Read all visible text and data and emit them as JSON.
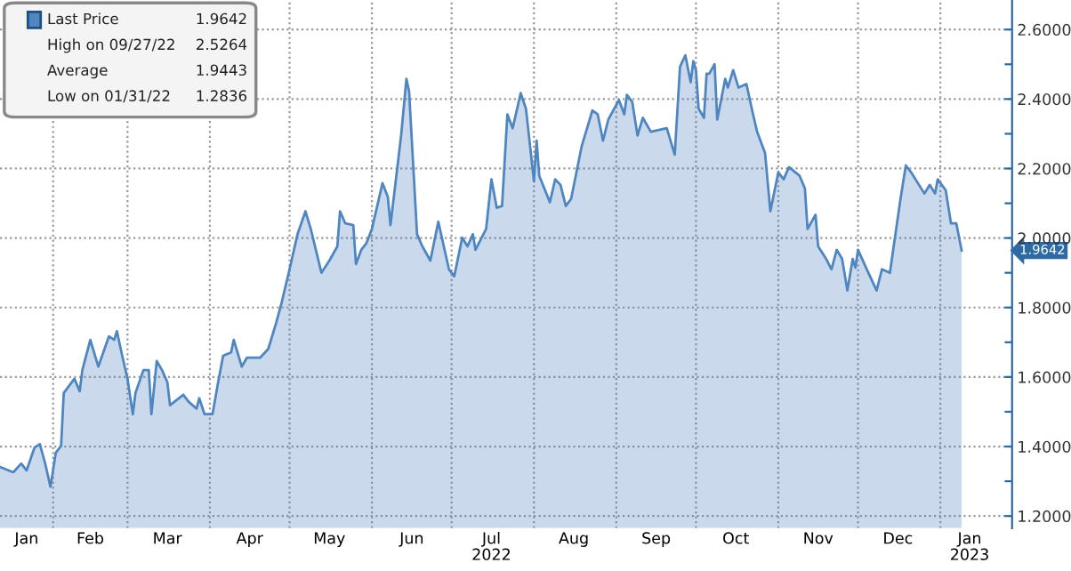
{
  "chart_data": {
    "type": "area",
    "x": [
      "2022-01-12",
      "2022-01-17",
      "2022-01-20",
      "2022-01-22",
      "2022-01-25",
      "2022-01-27",
      "2022-01-29",
      "2022-01-31",
      "2022-02-02",
      "2022-02-04",
      "2022-02-05",
      "2022-02-09",
      "2022-02-11",
      "2022-02-12",
      "2022-02-15",
      "2022-02-18",
      "2022-02-22",
      "2022-02-24",
      "2022-02-25",
      "2022-02-27",
      "2022-03-01",
      "2022-03-03",
      "2022-03-04",
      "2022-03-07",
      "2022-03-09",
      "2022-03-10",
      "2022-03-12",
      "2022-03-14",
      "2022-03-16",
      "2022-03-17",
      "2022-03-22",
      "2022-03-24",
      "2022-03-27",
      "2022-03-28",
      "2022-03-30",
      "2022-04-02",
      "2022-04-04",
      "2022-04-06",
      "2022-04-09",
      "2022-04-10",
      "2022-04-13",
      "2022-04-15",
      "2022-04-20",
      "2022-04-23",
      "2022-04-26",
      "2022-04-28",
      "2022-05-01",
      "2022-05-04",
      "2022-05-07",
      "2022-05-09",
      "2022-05-13",
      "2022-05-16",
      "2022-05-19",
      "2022-05-20",
      "2022-05-22",
      "2022-05-25",
      "2022-05-26",
      "2022-05-28",
      "2022-05-30",
      "2022-06-01",
      "2022-06-05",
      "2022-06-07",
      "2022-06-08",
      "2022-06-12",
      "2022-06-14",
      "2022-06-15",
      "2022-06-18",
      "2022-06-20",
      "2022-06-23",
      "2022-06-26",
      "2022-06-30",
      "2022-07-02",
      "2022-07-05",
      "2022-07-07",
      "2022-07-09",
      "2022-07-10",
      "2022-07-14",
      "2022-07-16",
      "2022-07-18",
      "2022-07-20",
      "2022-07-22",
      "2022-07-24",
      "2022-07-27",
      "2022-07-29",
      "2022-08-01",
      "2022-08-02",
      "2022-08-03",
      "2022-08-07",
      "2022-08-09",
      "2022-08-11",
      "2022-08-13",
      "2022-08-15",
      "2022-08-19",
      "2022-08-23",
      "2022-08-25",
      "2022-08-27",
      "2022-08-29",
      "2022-09-02",
      "2022-09-04",
      "2022-09-05",
      "2022-09-07",
      "2022-09-09",
      "2022-09-11",
      "2022-09-14",
      "2022-09-20",
      "2022-09-23",
      "2022-09-25",
      "2022-09-27",
      "2022-09-29",
      "2022-09-30",
      "2022-10-01",
      "2022-10-02",
      "2022-10-04",
      "2022-10-05",
      "2022-10-06",
      "2022-10-08",
      "2022-10-09",
      "2022-10-12",
      "2022-10-13",
      "2022-10-15",
      "2022-10-17",
      "2022-10-20",
      "2022-10-22",
      "2022-10-24",
      "2022-10-27",
      "2022-10-29",
      "2022-11-01",
      "2022-11-03",
      "2022-11-05",
      "2022-11-09",
      "2022-11-11",
      "2022-11-12",
      "2022-11-15",
      "2022-11-16",
      "2022-11-19",
      "2022-11-21",
      "2022-11-23",
      "2022-11-25",
      "2022-11-27",
      "2022-11-29",
      "2022-11-30",
      "2022-12-01",
      "2022-12-04",
      "2022-12-08",
      "2022-12-10",
      "2022-12-13",
      "2022-12-17",
      "2022-12-19",
      "2022-12-21",
      "2022-12-26",
      "2022-12-28",
      "2022-12-30",
      "2022-12-31",
      "2023-01-03",
      "2023-01-05",
      "2023-01-07",
      "2023-01-09"
    ],
    "series": [
      {
        "name": "Last Price",
        "color": "#4f86c0",
        "values": [
          1.341,
          1.326,
          1.351,
          1.331,
          1.397,
          1.407,
          1.351,
          1.284,
          1.382,
          1.402,
          1.554,
          1.595,
          1.559,
          1.62,
          1.707,
          1.63,
          1.717,
          1.707,
          1.732,
          1.661,
          1.595,
          1.493,
          1.554,
          1.62,
          1.62,
          1.493,
          1.646,
          1.62,
          1.585,
          1.519,
          1.549,
          1.529,
          1.509,
          1.539,
          1.493,
          1.493,
          1.58,
          1.661,
          1.671,
          1.707,
          1.63,
          1.656,
          1.656,
          1.681,
          1.757,
          1.813,
          1.91,
          2.011,
          2.077,
          2.026,
          1.9,
          1.935,
          1.976,
          2.077,
          2.042,
          2.037,
          1.925,
          1.966,
          1.986,
          2.026,
          2.158,
          2.118,
          2.037,
          2.295,
          2.458,
          2.422,
          2.011,
          1.976,
          1.935,
          2.047,
          1.91,
          1.89,
          2.001,
          1.976,
          2.011,
          1.966,
          2.026,
          2.169,
          2.087,
          2.092,
          2.356,
          2.316,
          2.417,
          2.372,
          2.163,
          2.28,
          2.179,
          2.103,
          2.169,
          2.153,
          2.092,
          2.113,
          2.265,
          2.367,
          2.356,
          2.28,
          2.341,
          2.397,
          2.356,
          2.412,
          2.392,
          2.295,
          2.346,
          2.306,
          2.316,
          2.24,
          2.493,
          2.526,
          2.448,
          2.509,
          2.483,
          2.372,
          2.346,
          2.473,
          2.473,
          2.5,
          2.341,
          2.458,
          2.433,
          2.483,
          2.433,
          2.443,
          2.372,
          2.306,
          2.245,
          2.077,
          2.189,
          2.169,
          2.204,
          2.179,
          2.143,
          2.026,
          2.067,
          1.976,
          1.94,
          1.91,
          1.966,
          1.94,
          1.849,
          1.94,
          1.915,
          1.966,
          1.915,
          1.849,
          1.91,
          1.9,
          2.113,
          2.209,
          2.189,
          2.128,
          2.153,
          2.128,
          2.169,
          2.138,
          2.042,
          2.042,
          1.9642
        ]
      }
    ],
    "xlim": [
      "2022-01-12",
      "2023-01-28"
    ],
    "xticks": [
      {
        "value": "2022-01-22",
        "label": "Jan"
      },
      {
        "value": "2022-02-01",
        "label": null
      },
      {
        "value": "2022-02-15",
        "label": "Feb"
      },
      {
        "value": "2022-03-01",
        "label": null
      },
      {
        "value": "2022-03-16",
        "label": "Mar"
      },
      {
        "value": "2022-04-01",
        "label": null
      },
      {
        "value": "2022-04-16",
        "label": "Apr"
      },
      {
        "value": "2022-05-01",
        "label": null
      },
      {
        "value": "2022-05-16",
        "label": "May"
      },
      {
        "value": "2022-06-01",
        "label": null
      },
      {
        "value": "2022-06-16",
        "label": "Jun"
      },
      {
        "value": "2022-07-01",
        "label": null
      },
      {
        "value": "2022-07-16",
        "label": "Jul\n2022"
      },
      {
        "value": "2022-08-01",
        "label": null
      },
      {
        "value": "2022-08-16",
        "label": "Aug"
      },
      {
        "value": "2022-09-01",
        "label": null
      },
      {
        "value": "2022-09-16",
        "label": "Sep"
      },
      {
        "value": "2022-10-01",
        "label": null
      },
      {
        "value": "2022-10-16",
        "label": "Oct"
      },
      {
        "value": "2022-11-01",
        "label": null
      },
      {
        "value": "2022-11-16",
        "label": "Nov"
      },
      {
        "value": "2022-12-01",
        "label": null
      },
      {
        "value": "2022-12-16",
        "label": "Dec"
      },
      {
        "value": "2023-01-01",
        "label": null
      },
      {
        "value": "2023-01-12",
        "label": "Jan\n2023"
      }
    ],
    "ylim": [
      1.165,
      2.685
    ],
    "yticks": [
      {
        "value": 1.2,
        "label": "1.2000"
      },
      {
        "value": 1.3,
        "label": null
      },
      {
        "value": 1.4,
        "label": "1.4000"
      },
      {
        "value": 1.5,
        "label": null
      },
      {
        "value": 1.6,
        "label": "1.6000"
      },
      {
        "value": 1.7,
        "label": null
      },
      {
        "value": 1.8,
        "label": "1.8000"
      },
      {
        "value": 1.9,
        "label": null
      },
      {
        "value": 2.0,
        "label": "2.0000"
      },
      {
        "value": 2.1,
        "label": null
      },
      {
        "value": 2.2,
        "label": "2.2000"
      },
      {
        "value": 2.3,
        "label": null
      },
      {
        "value": 2.4,
        "label": "2.4000"
      },
      {
        "value": 2.5,
        "label": null
      },
      {
        "value": 2.6,
        "label": "2.6000"
      }
    ],
    "grid": true,
    "legend": "top left",
    "annotations": [
      "1.9642",
      "High on 09/27/22",
      "2.5264",
      "Average",
      "1.9443",
      "Low on 01/31/22",
      "1.2836",
      "1.9642"
    ]
  }
}
